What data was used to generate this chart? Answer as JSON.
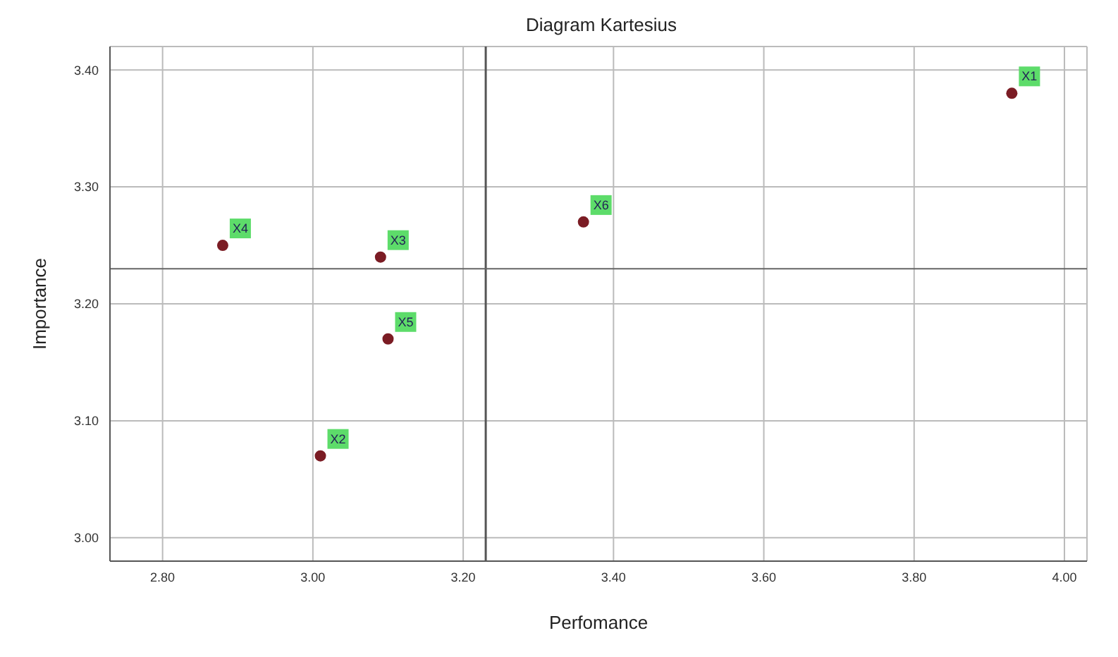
{
  "chart_data": {
    "type": "scatter",
    "title": "Diagram Kartesius",
    "xlabel": "Perfomance",
    "ylabel": "Importance",
    "x": [
      3.93,
      3.01,
      3.09,
      2.88,
      3.1,
      3.36
    ],
    "values": [
      3.38,
      3.07,
      3.24,
      3.25,
      3.17,
      3.27
    ],
    "color": "#7b1c24",
    "marker": "circle",
    "xlim": [
      2.73,
      4.03
    ],
    "ylim": [
      2.98,
      3.42
    ],
    "xticks": [
      {
        "value": 2.8,
        "label": "2.80"
      },
      {
        "value": 3.0,
        "label": "3.00"
      },
      {
        "value": 3.2,
        "label": "3.20"
      },
      {
        "value": 3.4,
        "label": "3.40"
      },
      {
        "value": 3.6,
        "label": "3.60"
      },
      {
        "value": 3.8,
        "label": "3.80"
      },
      {
        "value": 4.0,
        "label": "4.00"
      }
    ],
    "yticks": [
      {
        "value": 3.0,
        "label": "3.00"
      },
      {
        "value": 3.1,
        "label": "3.10"
      },
      {
        "value": 3.2,
        "label": "3.20"
      },
      {
        "value": 3.3,
        "label": "3.30"
      },
      {
        "value": 3.4,
        "label": "3.40"
      }
    ],
    "grid": true,
    "ref_lines": [
      {
        "axis": "x",
        "value": 3.23
      },
      {
        "axis": "y",
        "value": 3.23
      }
    ],
    "annotations": [
      {
        "text": "X1",
        "x": 3.93,
        "y": 3.38
      },
      {
        "text": "X2",
        "x": 3.01,
        "y": 3.07
      },
      {
        "text": "X3",
        "x": 3.09,
        "y": 3.24
      },
      {
        "text": "X4",
        "x": 2.88,
        "y": 3.25
      },
      {
        "text": "X5",
        "x": 3.1,
        "y": 3.17
      },
      {
        "text": "X6",
        "x": 3.36,
        "y": 3.27
      }
    ]
  }
}
